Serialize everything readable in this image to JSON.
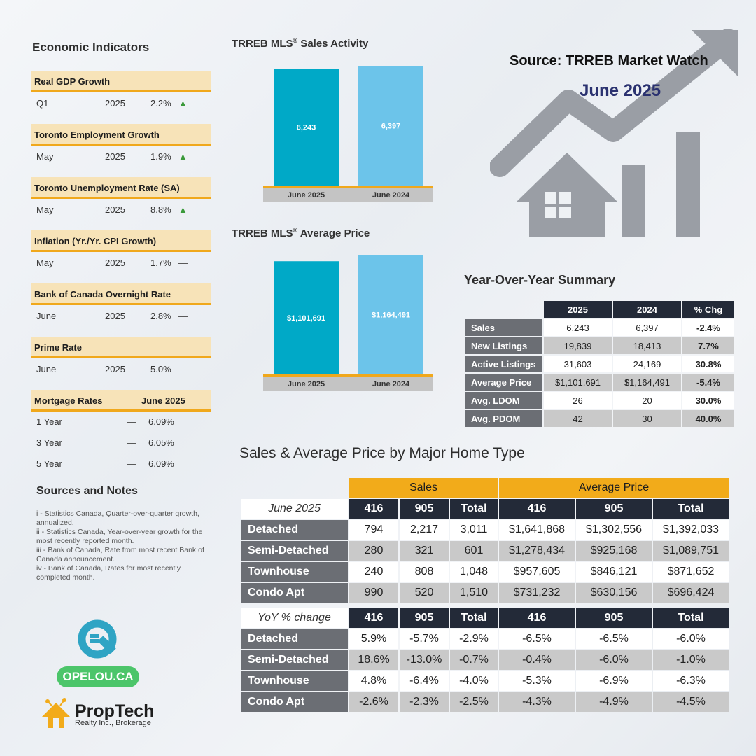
{
  "economic": {
    "title": "Economic Indicators",
    "indicators": [
      {
        "name": "Real GDP Growth",
        "period": "Q1",
        "year": "2025",
        "value": "2.2%",
        "trend": "up"
      },
      {
        "name": "Toronto Employment Growth",
        "period": "May",
        "year": "2025",
        "value": "1.9%",
        "trend": "up"
      },
      {
        "name": "Toronto Unemployment Rate (SA)",
        "period": "May",
        "year": "2025",
        "value": "8.8%",
        "trend": "up"
      },
      {
        "name": "Inflation (Yr./Yr. CPI Growth)",
        "period": "May",
        "year": "2025",
        "value": "1.7%",
        "trend": "flat"
      },
      {
        "name": "Bank of Canada Overnight Rate",
        "period": "June",
        "year": "2025",
        "value": "2.8%",
        "trend": "flat"
      },
      {
        "name": "Prime Rate",
        "period": "June",
        "year": "2025",
        "value": "5.0%",
        "trend": "flat"
      }
    ],
    "mortgage": {
      "title": "Mortgage Rates",
      "date": "June 2025",
      "rows": [
        {
          "term": "1 Year",
          "trend": "flat",
          "value": "6.09%"
        },
        {
          "term": "3 Year",
          "trend": "flat",
          "value": "6.05%"
        },
        {
          "term": "5 Year",
          "trend": "flat",
          "value": "6.09%"
        }
      ]
    },
    "trend_glyphs": {
      "up": "▲",
      "flat": "—"
    }
  },
  "sources": {
    "title": "Sources and Notes",
    "notes": [
      "i - Statistics Canada, Quarter-over-quarter growth, annualized.",
      "ii - Statistics Canada, Year-over-year growth for the most recently reported month.",
      "iii - Bank of Canada, Rate from most recent Bank of Canada announcement.",
      "iv - Bank of Canada, Rates for most recently completed month."
    ]
  },
  "header": {
    "source": "Source: TRREB Market Watch",
    "date": "June 2025",
    "title_color": "#2b3270"
  },
  "chart_data": [
    {
      "type": "bar",
      "title": "TRREB MLS® Sales Activity",
      "categories": [
        "June 2025",
        "June 2024"
      ],
      "values": [
        6243,
        6397
      ],
      "labels": [
        "6,243",
        "6,397"
      ],
      "colors": [
        "#00a9c7",
        "#6cc4ea"
      ],
      "xlabel": "",
      "ylabel": "",
      "grid": false
    },
    {
      "type": "bar",
      "title": "TRREB MLS® Average Price",
      "categories": [
        "June 2025",
        "June 2024"
      ],
      "values": [
        1101691,
        1164491
      ],
      "labels": [
        "$1,101,691",
        "$1,164,491"
      ],
      "colors": [
        "#00a9c7",
        "#6cc4ea"
      ],
      "xlabel": "",
      "ylabel": "",
      "grid": false
    }
  ],
  "yoy": {
    "title": "Year-Over-Year Summary",
    "columns": [
      "2025",
      "2024",
      "% Chg"
    ],
    "rows": [
      {
        "label": "Sales",
        "v2025": "6,243",
        "v2024": "6,397",
        "chg": "-2.4%"
      },
      {
        "label": "New Listings",
        "v2025": "19,839",
        "v2024": "18,413",
        "chg": "7.7%"
      },
      {
        "label": "Active Listings",
        "v2025": "31,603",
        "v2024": "24,169",
        "chg": "30.8%"
      },
      {
        "label": "Average Price",
        "v2025": "$1,101,691",
        "v2024": "$1,164,491",
        "chg": "-5.4%"
      },
      {
        "label": "Avg. LDOM",
        "v2025": "26",
        "v2024": "20",
        "chg": "30.0%"
      },
      {
        "label": "Avg. PDOM",
        "v2025": "42",
        "v2024": "30",
        "chg": "40.0%"
      }
    ]
  },
  "home_types": {
    "title": "Sales & Average Price by Major Home Type",
    "group_sales": "Sales",
    "group_price": "Average Price",
    "columns": [
      "416",
      "905",
      "Total",
      "416",
      "905",
      "Total"
    ],
    "sales_label": "June 2025",
    "change_label": "YoY % change",
    "sales_rows": [
      {
        "label": "Detached",
        "values": [
          "794",
          "2,217",
          "3,011",
          "$1,641,868",
          "$1,302,556",
          "$1,392,033"
        ]
      },
      {
        "label": "Semi-Detached",
        "values": [
          "280",
          "321",
          "601",
          "$1,278,434",
          "$925,168",
          "$1,089,751"
        ]
      },
      {
        "label": "Townhouse",
        "values": [
          "240",
          "808",
          "1,048",
          "$957,605",
          "$846,121",
          "$871,652"
        ]
      },
      {
        "label": "Condo Apt",
        "values": [
          "990",
          "520",
          "1,510",
          "$731,232",
          "$630,156",
          "$696,424"
        ]
      }
    ],
    "change_rows": [
      {
        "label": "Detached",
        "values": [
          "5.9%",
          "-5.7%",
          "-2.9%",
          "-6.5%",
          "-6.5%",
          "-6.0%"
        ]
      },
      {
        "label": "Semi-Detached",
        "values": [
          "18.6%",
          "-13.0%",
          "-0.7%",
          "-0.4%",
          "-6.0%",
          "-1.0%"
        ]
      },
      {
        "label": "Townhouse",
        "values": [
          "4.8%",
          "-6.4%",
          "-4.0%",
          "-5.3%",
          "-6.9%",
          "-6.3%"
        ]
      },
      {
        "label": "Condo Apt",
        "values": [
          "-2.6%",
          "-2.3%",
          "-2.5%",
          "-4.3%",
          "-4.9%",
          "-4.5%"
        ]
      }
    ]
  },
  "brand": {
    "opelou": "OPELOU.CA",
    "proptech_name": "PropTech",
    "proptech_sub": "Realty Inc., Brokerage"
  }
}
